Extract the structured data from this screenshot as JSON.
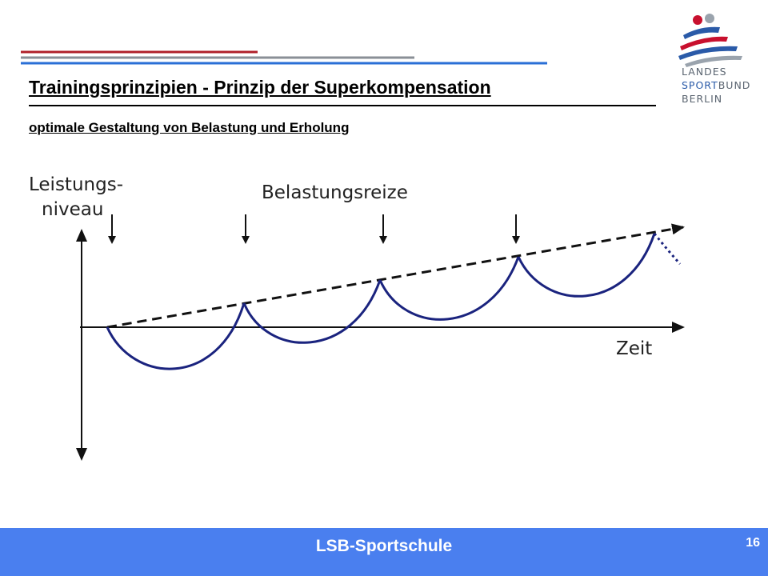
{
  "header": {
    "title": "Trainingsprinzipien - Prinzip der Superkompensation",
    "subtitle": "optimale Gestaltung von Belastung und Erholung",
    "line_colors": [
      "#b0202a",
      "#8a8f96",
      "#2a6fd6"
    ]
  },
  "logo": {
    "line1": "LANDES",
    "line2_accent": "SPORT",
    "line2_rest": "BUND",
    "line3": "BERLIN",
    "colors": [
      "#c8102e",
      "#2a5aa8",
      "#9aa3ad"
    ]
  },
  "diagram": {
    "y_axis_label_line1": "Leistungs-",
    "y_axis_label_line2": "niveau",
    "x_axis_label": "Zeit",
    "stimuli_label": "Belastungsreize",
    "curve_color": "#1a237e",
    "trend_color": "#111111"
  },
  "footer": {
    "label": "LSB-Sportschule",
    "page_number": "16",
    "background": "#4a7fef"
  }
}
